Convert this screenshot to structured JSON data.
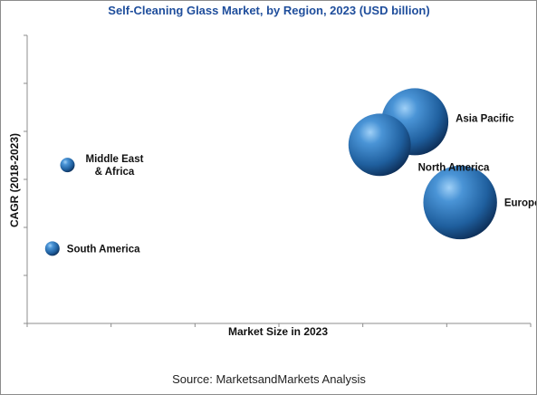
{
  "chart_data": {
    "type": "bubble",
    "title": "Self-Cleaning Glass Market, by Region, 2023 (USD billion)",
    "xlabel": "Market Size in 2023",
    "ylabel": "CAGR (2018-2023)",
    "grid": false,
    "legend": "none",
    "bubble_color": "#2a6fb3",
    "points": [
      {
        "label": [
          "Asia Pacific"
        ],
        "x": 0.77,
        "y": 0.7,
        "size": 1.0,
        "label_side": "right"
      },
      {
        "label": [
          "North America"
        ],
        "x": 0.7,
        "y": 0.62,
        "size": 0.93,
        "label_side": "right"
      },
      {
        "label": [
          "Europe"
        ],
        "x": 0.86,
        "y": 0.42,
        "size": 1.1,
        "label_side": "right"
      },
      {
        "label": [
          "Middle East",
          "& Africa"
        ],
        "x": 0.08,
        "y": 0.55,
        "size": 0.17,
        "label_side": "right"
      },
      {
        "label": [
          "South America"
        ],
        "x": 0.05,
        "y": 0.26,
        "size": 0.13,
        "label_side": "right"
      }
    ]
  },
  "footer": {
    "source": "Source: MarketsandMarkets Analysis"
  }
}
